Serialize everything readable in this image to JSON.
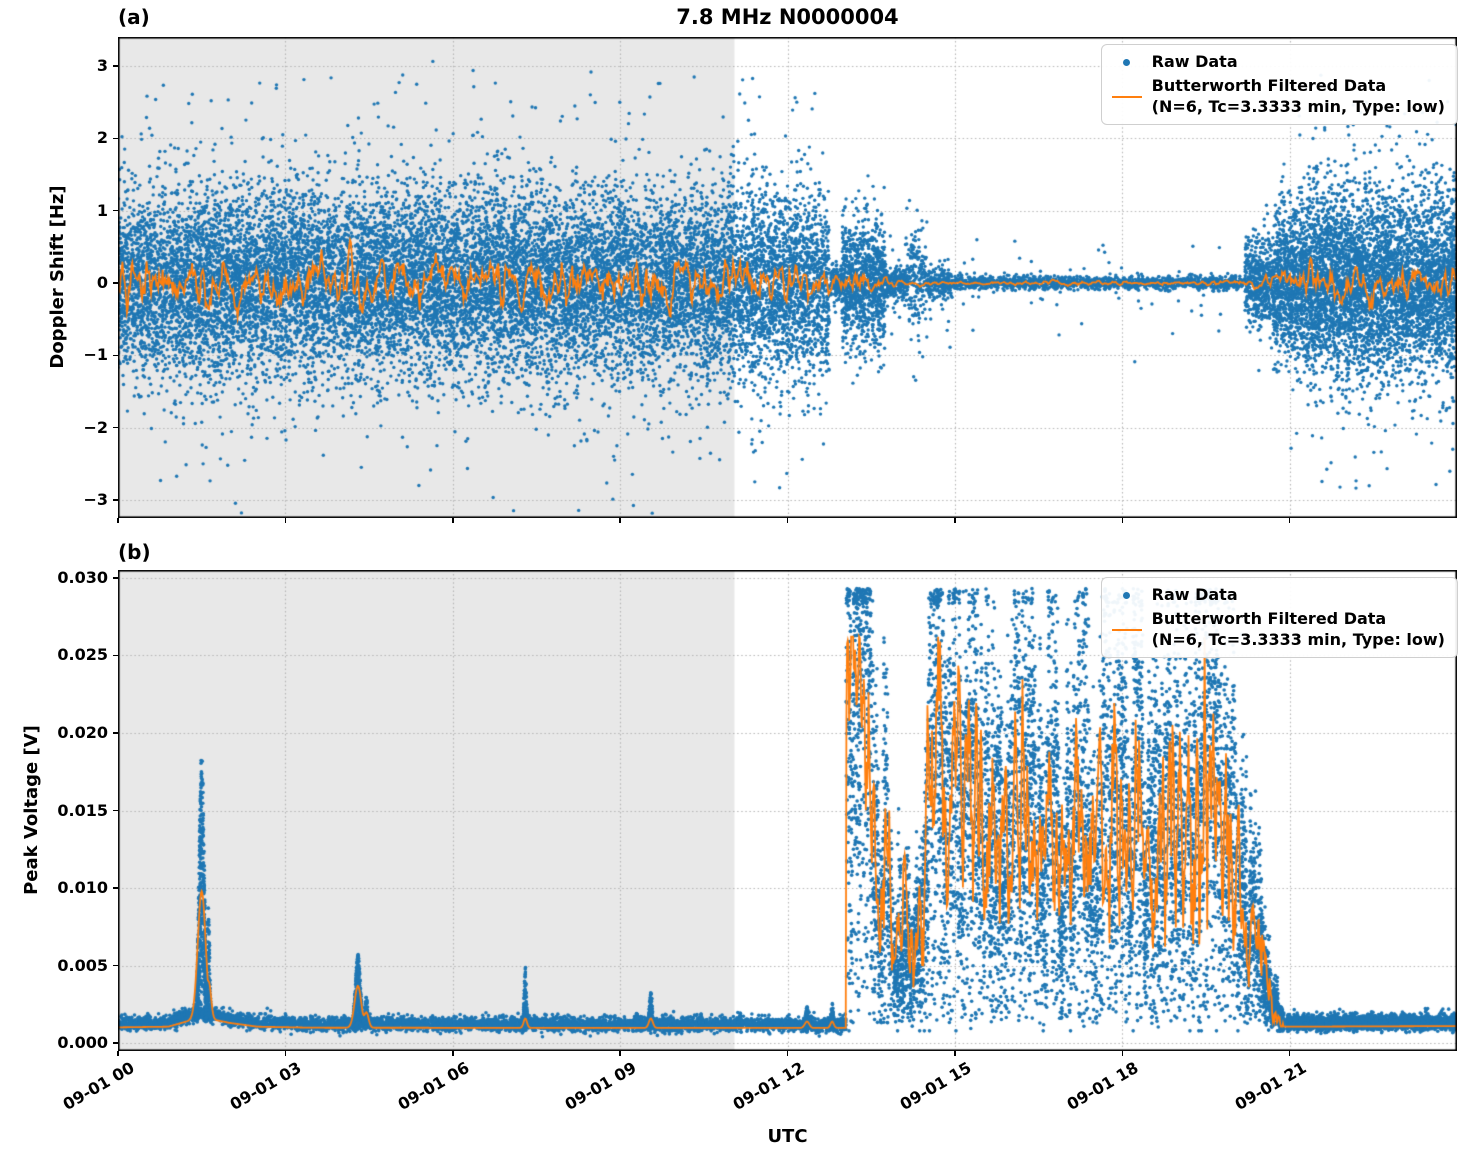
{
  "figure": {
    "title": "7.8 MHz N0000004",
    "xlabel": "UTC"
  },
  "legend": {
    "raw_label": "Raw Data",
    "filtered_label": "Butterworth Filtered Data",
    "filtered_sublabel": "(N=6, Tc=3.3333 min, Type: low)"
  },
  "style": {
    "raw_color": "#1f77b4",
    "filtered_color": "#ff7f0e",
    "shade_color": "#e8e8e8",
    "grid_color": "#b4b4b4",
    "axis_color": "#000000",
    "background": "#ffffff"
  },
  "chart_data": [
    {
      "id": "a",
      "type": "scatter",
      "panel_label": "(a)",
      "title": "7.8 MHz N0000004",
      "ylabel": "Doppler Shift [Hz]",
      "xlabel": "",
      "ylim": [
        -3.25,
        3.4
      ],
      "yticks": [
        3,
        2,
        1,
        0,
        -1,
        -2,
        -3
      ],
      "ytick_labels": [
        "3",
        "2",
        "1",
        "0",
        "−1",
        "−2",
        "−3"
      ],
      "x_range_hours": [
        0,
        24
      ],
      "x_tick_hours": [
        0,
        3,
        6,
        9,
        12,
        15,
        18,
        21
      ],
      "x_tick_labels": [
        "09-01 00",
        "09-01 03",
        "09-01 06",
        "09-01 09",
        "09-01 12",
        "09-01 15",
        "09-01 18",
        "09-01 21"
      ],
      "shaded_region_hours": [
        0,
        11.05
      ],
      "grid": true,
      "legend_position": "upper right",
      "series": [
        {
          "name": "Raw Data",
          "kind": "scatter",
          "color": "#1f77b4",
          "segments_format": "[t0_h, t1_h, n_points, sigma_Hz, tail_fraction, tail_multiplier, clip_Hz]",
          "segments": [
            [
              0,
              12.75,
              16000,
              0.62,
              0.1,
              1.9,
              3.2
            ],
            [
              12.78,
              12.98,
              160,
              0.12,
              0.05,
              2.0,
              2.9
            ],
            [
              12.98,
              13.75,
              1000,
              0.4,
              0.08,
              1.8,
              2.05
            ],
            [
              13.75,
              14.15,
              260,
              0.11,
              0.12,
              4.0,
              1.5
            ],
            [
              14.15,
              14.5,
              180,
              0.3,
              0.1,
              2.0,
              1.45
            ],
            [
              14.5,
              14.95,
              220,
              0.09,
              0.1,
              4.0,
              1.3
            ],
            [
              14.95,
              20.2,
              1600,
              0.045,
              0.03,
              8.0,
              1.25
            ],
            [
              20.2,
              20.7,
              520,
              0.28,
              0.06,
              2.0,
              1.8
            ],
            [
              20.7,
              21.3,
              950,
              0.5,
              0.07,
              1.8,
              2.4
            ],
            [
              21.3,
              24.01,
              4800,
              0.62,
              0.08,
              1.8,
              2.95
            ]
          ]
        },
        {
          "name": "Butterworth Filtered Data (N=6, Tc=3.3333 min, Type: low)",
          "kind": "line",
          "color": "#ff7f0e",
          "envelope_format": "[t_h, amplitude_Hz]",
          "envelope": [
            [
              0,
              0.17
            ],
            [
              2,
              0.15
            ],
            [
              4,
              0.17
            ],
            [
              6,
              0.15
            ],
            [
              8,
              0.17
            ],
            [
              10,
              0.15
            ],
            [
              12,
              0.16
            ],
            [
              12.7,
              0.1
            ],
            [
              13.0,
              0.05
            ],
            [
              13.2,
              0.1
            ],
            [
              13.6,
              0.07
            ],
            [
              13.9,
              0.025
            ],
            [
              14.6,
              0.012
            ],
            [
              20.0,
              0.012
            ],
            [
              20.4,
              0.05
            ],
            [
              20.9,
              0.09
            ],
            [
              21.5,
              0.115
            ],
            [
              24,
              0.115
            ]
          ],
          "scale": 2.3
        }
      ]
    },
    {
      "id": "b",
      "type": "scatter",
      "panel_label": "(b)",
      "title": "",
      "ylabel": "Peak Voltage [V]",
      "xlabel": "UTC",
      "ylim": [
        -0.0005,
        0.0305
      ],
      "yticks": [
        0.03,
        0.025,
        0.02,
        0.015,
        0.01,
        0.005,
        0.0
      ],
      "ytick_labels": [
        "0.030",
        "0.025",
        "0.020",
        "0.015",
        "0.010",
        "0.005",
        "0.000"
      ],
      "x_range_hours": [
        0,
        24
      ],
      "x_tick_hours": [
        0,
        3,
        6,
        9,
        12,
        15,
        18,
        21
      ],
      "x_tick_labels": [
        "09-01 00",
        "09-01 03",
        "09-01 06",
        "09-01 09",
        "09-01 12",
        "09-01 15",
        "09-01 18",
        "09-01 21"
      ],
      "shaded_region_hours": [
        0,
        11.05
      ],
      "grid": true,
      "legend_position": "upper right",
      "series": [
        {
          "name": "Raw Data",
          "kind": "scatter",
          "color": "#1f77b4",
          "baseline": {
            "sigma_V": 0.00022,
            "segments_format": "[t0_h, t1_h, n_points]",
            "segments": [
              [
                0,
                13.05,
                5200
              ],
              [
                20.95,
                24,
                3000
              ]
            ],
            "center_V": [
              [
                0,
                0.00125
              ],
              [
                0.9,
                0.0013
              ],
              [
                1.3,
                0.0018
              ],
              [
                1.55,
                0.002
              ],
              [
                2.0,
                0.0016
              ],
              [
                2.5,
                0.0013
              ],
              [
                3.5,
                0.00122
              ],
              [
                13.05,
                0.0012
              ],
              [
                20.9,
                0.0013
              ],
              [
                24,
                0.00135
              ]
            ]
          },
          "spikes_format": "[t_center_h, half_width_h, peak_V, n_points]",
          "spikes": [
            [
              1.5,
              0.1,
              0.0188,
              600
            ],
            [
              1.62,
              0.05,
              0.009,
              150
            ],
            [
              4.3,
              0.09,
              0.0058,
              300
            ],
            [
              4.45,
              0.05,
              0.0032,
              90
            ],
            [
              7.3,
              0.04,
              0.005,
              100
            ],
            [
              9.55,
              0.05,
              0.0034,
              100
            ],
            [
              9.3,
              0.03,
              0.002,
              40
            ],
            [
              10.45,
              0.03,
              0.0019,
              35
            ],
            [
              11.15,
              0.04,
              0.002,
              40
            ],
            [
              12.35,
              0.05,
              0.0024,
              70
            ],
            [
              12.8,
              0.04,
              0.0026,
              60
            ]
          ],
          "active": {
            "t0": 13.05,
            "t1": 20.9,
            "n": 9000,
            "spread_frac": 0.33,
            "low_frac": 0.12,
            "center_V": [
              [
                13.05,
                0.021
              ],
              [
                13.15,
                0.026
              ],
              [
                13.3,
                0.024
              ],
              [
                13.45,
                0.026
              ],
              [
                13.55,
                0.014
              ],
              [
                13.65,
                0.008
              ],
              [
                13.75,
                0.018
              ],
              [
                13.85,
                0.01
              ],
              [
                13.95,
                0.006
              ],
              [
                14.1,
                0.009
              ],
              [
                14.25,
                0.006
              ],
              [
                14.4,
                0.008
              ],
              [
                14.55,
                0.021
              ],
              [
                14.7,
                0.023
              ],
              [
                14.85,
                0.017
              ],
              [
                15.0,
                0.021
              ],
              [
                15.15,
                0.016
              ],
              [
                15.3,
                0.02
              ],
              [
                15.5,
                0.014
              ],
              [
                15.7,
                0.019
              ],
              [
                15.9,
                0.013
              ],
              [
                16.1,
                0.017
              ],
              [
                16.3,
                0.02
              ],
              [
                16.5,
                0.013
              ],
              [
                16.7,
                0.018
              ],
              [
                16.9,
                0.012
              ],
              [
                17.1,
                0.016
              ],
              [
                17.3,
                0.02
              ],
              [
                17.5,
                0.013
              ],
              [
                17.7,
                0.017
              ],
              [
                17.9,
                0.021
              ],
              [
                18.1,
                0.014
              ],
              [
                18.3,
                0.018
              ],
              [
                18.5,
                0.012
              ],
              [
                18.7,
                0.016
              ],
              [
                18.9,
                0.02
              ],
              [
                19.1,
                0.013
              ],
              [
                19.3,
                0.017
              ],
              [
                19.5,
                0.02
              ],
              [
                19.65,
                0.022
              ],
              [
                19.8,
                0.016
              ],
              [
                19.95,
                0.019
              ],
              [
                20.1,
                0.012
              ],
              [
                20.25,
                0.008
              ],
              [
                20.4,
                0.01
              ],
              [
                20.55,
                0.005
              ],
              [
                20.7,
                0.0025
              ],
              [
                20.9,
                0.0014
              ]
            ]
          }
        },
        {
          "name": "Butterworth Filtered Data (N=6, Tc=3.3333 min, Type: low)",
          "kind": "line",
          "color": "#ff7f0e",
          "line_spikes_format": "[t_center_h, peak_V, width_h]",
          "line_spikes": [
            [
              1.5,
              0.0098,
              0.07
            ],
            [
              1.62,
              0.004,
              0.04
            ],
            [
              4.3,
              0.0037,
              0.06
            ],
            [
              4.45,
              0.002,
              0.04
            ],
            [
              7.3,
              0.0016,
              0.03
            ],
            [
              9.55,
              0.0016,
              0.035
            ],
            [
              12.35,
              0.0014,
              0.04
            ],
            [
              12.8,
              0.0014,
              0.03
            ]
          ]
        }
      ]
    }
  ]
}
